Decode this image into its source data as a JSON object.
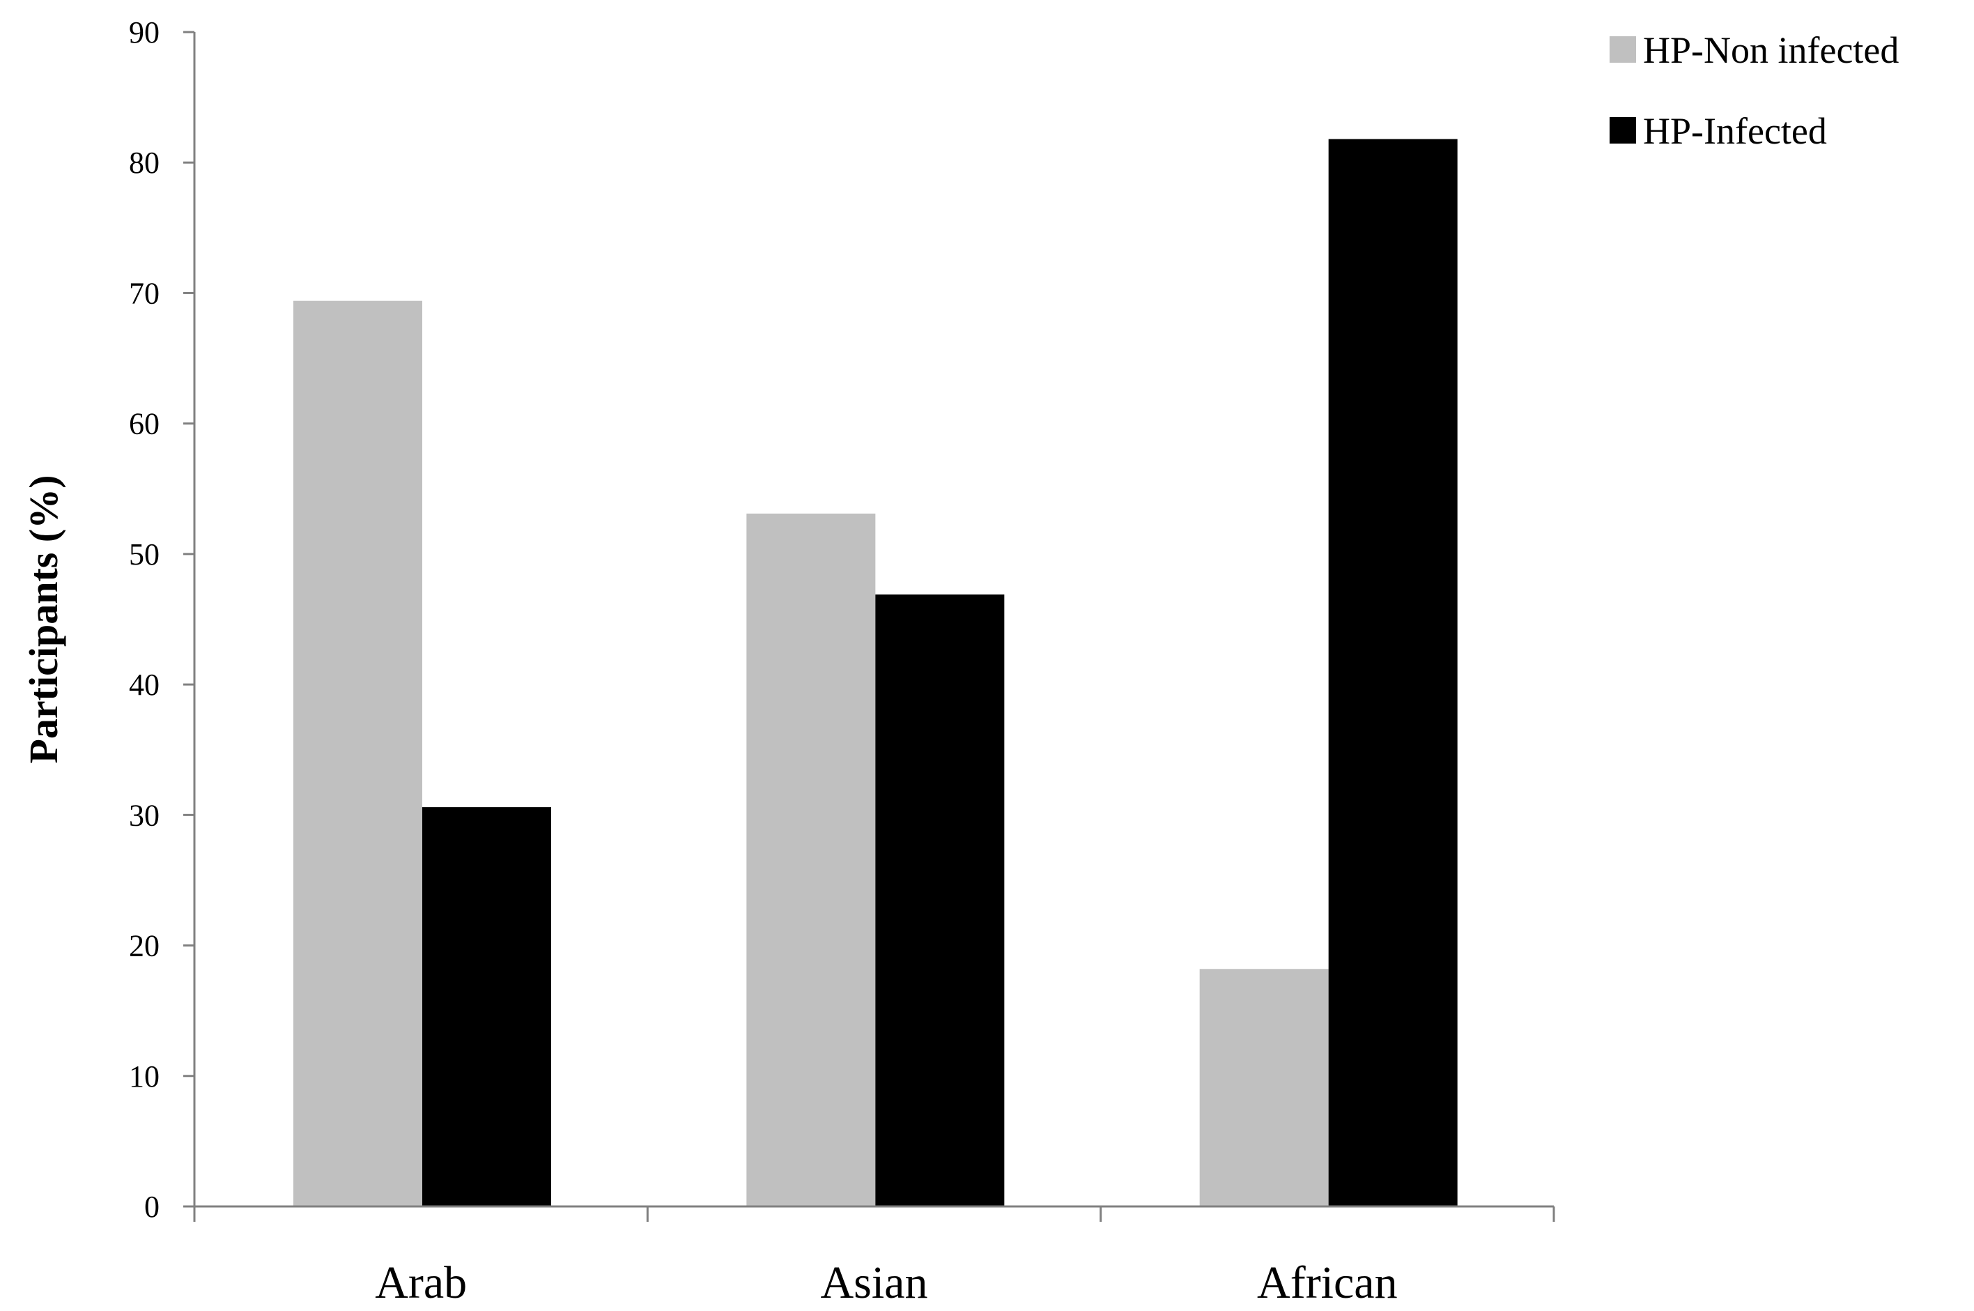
{
  "chart_data": {
    "type": "bar",
    "title": "",
    "xlabel": "",
    "ylabel": "Participants (%)",
    "categories": [
      "Arab",
      "Asian",
      "African"
    ],
    "ylim": [
      0,
      90
    ],
    "yticks": [
      0,
      10,
      20,
      30,
      40,
      50,
      60,
      70,
      80,
      90
    ],
    "grid": false,
    "legend_position": "top-right",
    "series": [
      {
        "name": "HP-Non infected",
        "color": "#c0c0c0",
        "values": [
          69.4,
          53.1,
          18.2
        ]
      },
      {
        "name": "HP-Infected",
        "color": "#000000",
        "values": [
          30.6,
          46.9,
          81.8
        ]
      }
    ]
  }
}
